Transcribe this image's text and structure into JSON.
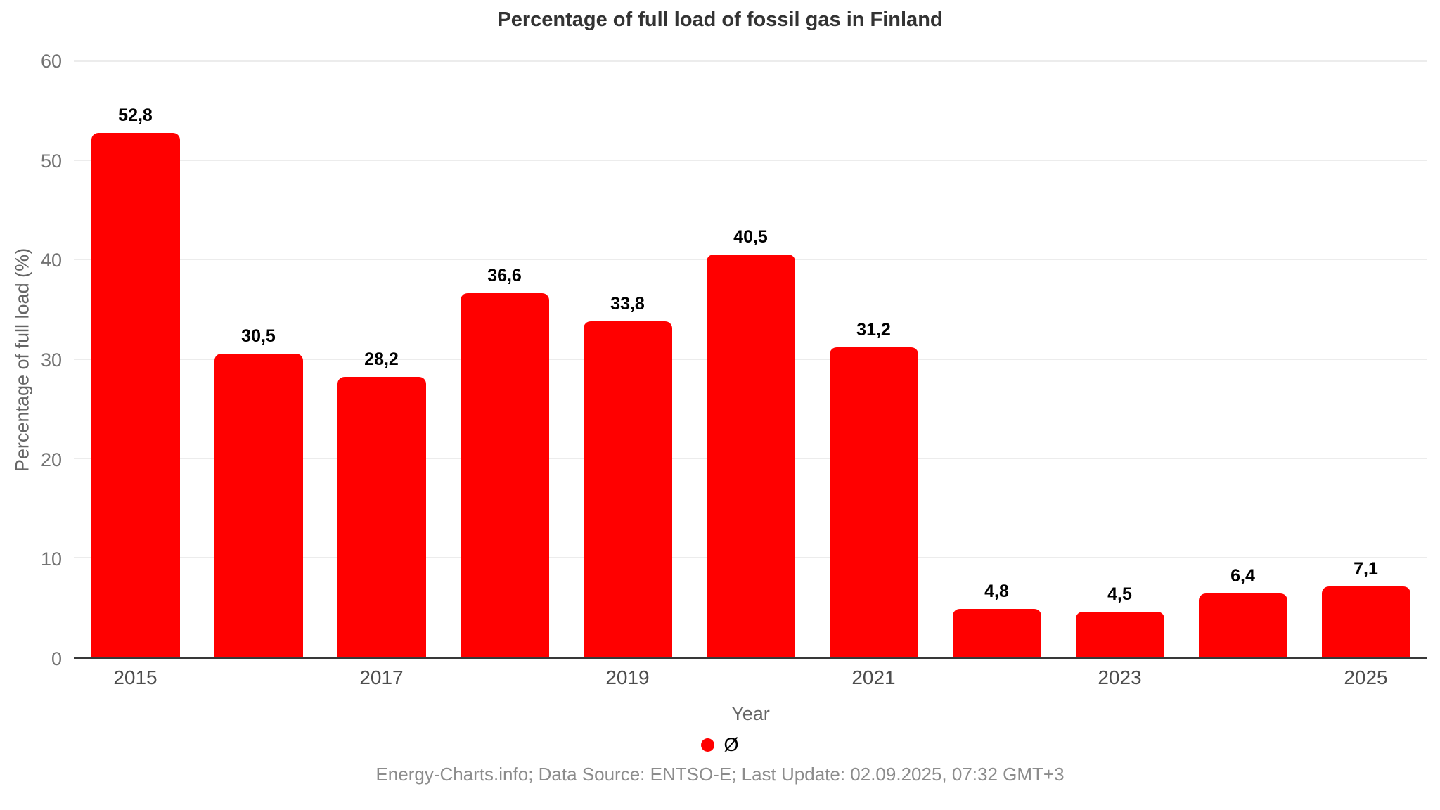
{
  "title": "Percentage of full load of fossil gas in Finland",
  "chart_data": {
    "type": "bar",
    "title": "Percentage of full load of fossil gas in Finland",
    "xlabel": "Year",
    "ylabel": "Percentage of full load (%)",
    "ylim": [
      0,
      60
    ],
    "y_ticks": [
      0,
      10,
      20,
      30,
      40,
      50,
      60
    ],
    "grid": true,
    "bar_color": "#ff0000",
    "values": [
      52.8,
      30.5,
      28.2,
      36.6,
      33.8,
      40.5,
      31.2,
      4.8,
      4.5,
      6.4,
      7.1
    ],
    "bar_labels": [
      "52,8",
      "30,5",
      "28,2",
      "36,6",
      "33,8",
      "40,5",
      "31,2",
      "4,8",
      "4,5",
      "6,4",
      "7,1"
    ],
    "x_ticks": [
      {
        "bar_index": 0,
        "label": "2015"
      },
      {
        "bar_index": 2,
        "label": "2017"
      },
      {
        "bar_index": 4,
        "label": "2019"
      },
      {
        "bar_index": 6,
        "label": "2021"
      },
      {
        "bar_index": 8,
        "label": "2023"
      },
      {
        "bar_index": 10,
        "label": "2025"
      }
    ],
    "legend": {
      "position": "bottom",
      "entries": [
        {
          "label": "Ø",
          "color": "#ff0000"
        }
      ]
    }
  },
  "footer": "Energy-Charts.info; Data Source: ENTSO-E; Last Update: 02.09.2025, 07:32 GMT+3",
  "colors": {
    "bar": "#ff0000",
    "title_text": "#333333",
    "axis_line": "#383838",
    "gridline": "#ececec",
    "y_tick_text": "#737373",
    "x_tick_text": "#4d4d4d",
    "axis_title_text": "#666666",
    "footer_text": "#8c8c8c"
  }
}
